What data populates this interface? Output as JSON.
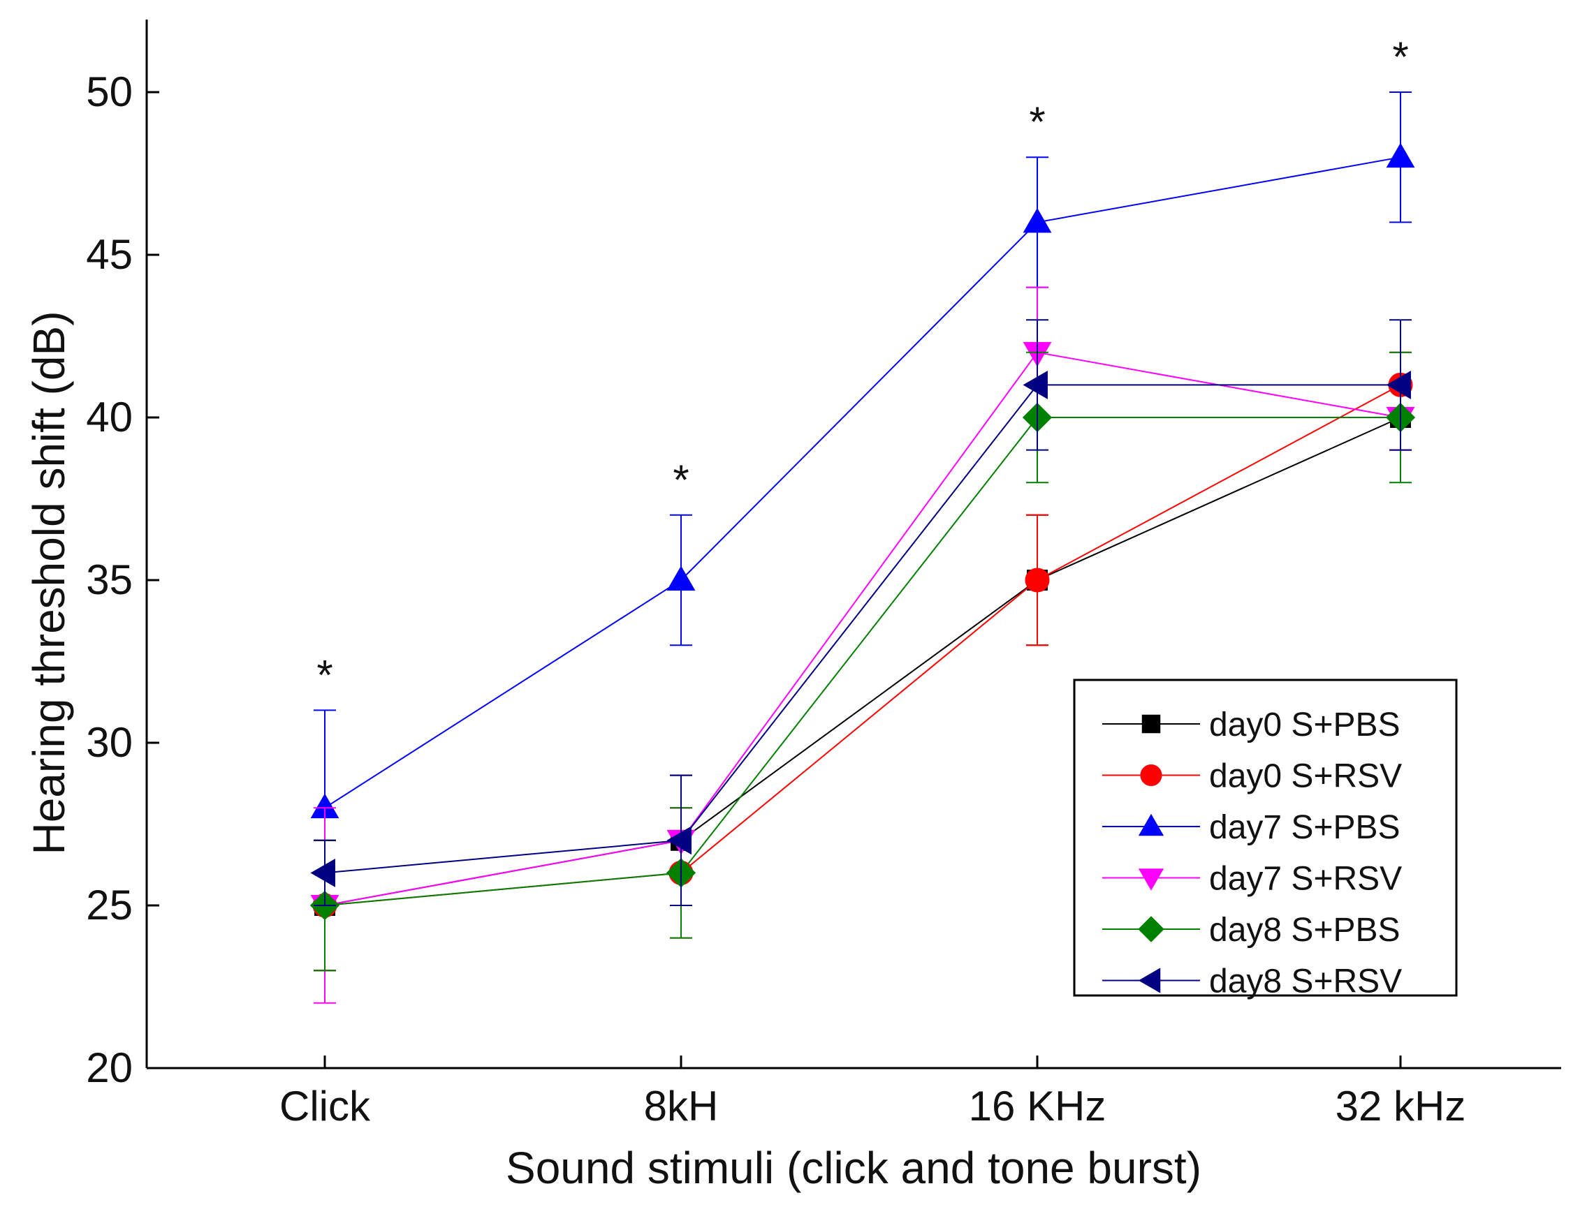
{
  "chart_data": {
    "type": "line",
    "title": "",
    "xlabel": "Sound stimuli (click and tone burst)",
    "ylabel": "Hearing threshold shift (dB)",
    "categories": [
      "Click",
      "8kH",
      "16 KHz",
      "32 kHz"
    ],
    "ylim": [
      20,
      52
    ],
    "yticks": [
      20,
      25,
      30,
      35,
      40,
      45,
      50
    ],
    "series": [
      {
        "name": "day0 S+PBS",
        "color": "#000000",
        "marker": "square",
        "values": [
          25,
          27,
          35,
          40
        ],
        "errors": [
          2,
          2,
          2,
          1
        ]
      },
      {
        "name": "day0 S+RSV",
        "color": "#ff0000",
        "marker": "circle",
        "values": [
          25,
          26,
          35,
          41
        ],
        "errors": [
          2,
          2,
          2,
          1
        ]
      },
      {
        "name": "day7 S+PBS",
        "color": "#0000ff",
        "marker": "triangle-up",
        "values": [
          28,
          35,
          46,
          48
        ],
        "errors": [
          3,
          2,
          2,
          2
        ]
      },
      {
        "name": "day7 S+RSV",
        "color": "#ff00ff",
        "marker": "triangle-down",
        "values": [
          25,
          27,
          42,
          40
        ],
        "errors": [
          3,
          1,
          2,
          1
        ]
      },
      {
        "name": "day8 S+PBS",
        "color": "#008000",
        "marker": "diamond",
        "values": [
          25,
          26,
          40,
          40
        ],
        "errors": [
          2,
          2,
          2,
          2
        ]
      },
      {
        "name": "day8 S+RSV",
        "color": "#000080",
        "marker": "triangle-left",
        "values": [
          26,
          27,
          41,
          41
        ],
        "errors": [
          1,
          2,
          2,
          2
        ]
      }
    ],
    "annotations": [
      {
        "text": "*",
        "category": "Click"
      },
      {
        "text": "*",
        "category": "8kH"
      },
      {
        "text": "*",
        "category": "16 KHz"
      },
      {
        "text": "*",
        "category": "32 kHz"
      }
    ],
    "legend_position": "bottom-right",
    "grid": false
  }
}
